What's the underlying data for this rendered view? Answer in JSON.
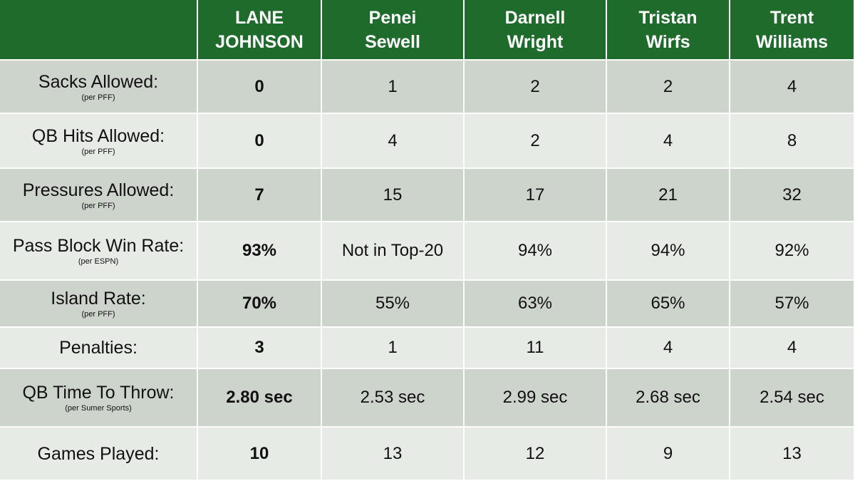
{
  "table": {
    "columns": [
      "LANE\nJOHNSON",
      "Penei\nSewell",
      "Darnell\nWright",
      "Tristan\nWirfs",
      "Trent\nWilliams"
    ],
    "rows": [
      {
        "label": "Sacks Allowed:",
        "note": "(per PFF)",
        "values": [
          "0",
          "1",
          "2",
          "2",
          "4"
        ]
      },
      {
        "label": "QB Hits Allowed:",
        "note": "(per PFF)",
        "values": [
          "0",
          "4",
          "2",
          "4",
          "8"
        ]
      },
      {
        "label": "Pressures Allowed:",
        "note": "(per PFF)",
        "values": [
          "7",
          "15",
          "17",
          "21",
          "32"
        ]
      },
      {
        "label": "Pass Block Win Rate:",
        "note": "(per ESPN)",
        "values": [
          "93%",
          "Not in Top-20",
          "94%",
          "94%",
          "92%"
        ]
      },
      {
        "label": "Island Rate:",
        "note": "(per PFF)",
        "values": [
          "70%",
          "55%",
          "63%",
          "65%",
          "57%"
        ]
      },
      {
        "label": "Penalties:",
        "values": [
          "3",
          "1",
          "11",
          "4",
          "4"
        ]
      },
      {
        "label": "QB Time To Throw:",
        "note": "(per Sumer Sports)",
        "values": [
          "2.80 sec",
          "2.53 sec",
          "2.99 sec",
          "2.68 sec",
          "2.54 sec"
        ]
      },
      {
        "label": "Games Played:",
        "values": [
          "10",
          "13",
          "12",
          "9",
          "13"
        ]
      }
    ]
  }
}
